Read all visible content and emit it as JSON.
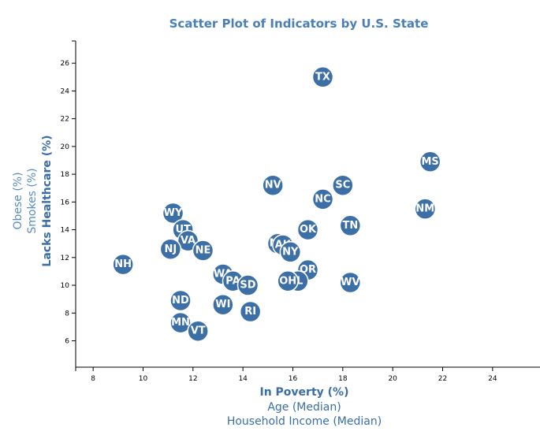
{
  "chart_data": {
    "type": "scatter",
    "title": "Scatter Plot of Indicators by U.S. State",
    "xlabel": "In Poverty (%)",
    "ylabel": "Lacks Healthcare (%)",
    "x_options": [
      "In Poverty (%)",
      "Age (Median)",
      "Household Income (Median)"
    ],
    "y_options": [
      "Lacks Healthcare (%)",
      "Smokes (%)",
      "Obese (%)"
    ],
    "xlim": [
      7.3,
      25.9
    ],
    "ylim": [
      4.1,
      27.6
    ],
    "x_ticks": [
      8,
      10,
      12,
      14,
      16,
      18,
      20,
      22,
      24
    ],
    "y_ticks": [
      6,
      8,
      10,
      12,
      14,
      16,
      18,
      20,
      22,
      24,
      26
    ],
    "grid": false,
    "points": [
      {
        "label": "TX",
        "x": 17.2,
        "y": 25.0
      },
      {
        "label": "MS",
        "x": 21.5,
        "y": 18.9
      },
      {
        "label": "NV",
        "x": 15.2,
        "y": 17.2
      },
      {
        "label": "SC",
        "x": 18.0,
        "y": 17.2
      },
      {
        "label": "NC",
        "x": 17.2,
        "y": 16.2
      },
      {
        "label": "NM",
        "x": 21.3,
        "y": 15.5
      },
      {
        "label": "WY",
        "x": 11.2,
        "y": 15.2
      },
      {
        "label": "UT",
        "x": 11.6,
        "y": 14.0
      },
      {
        "label": "TN",
        "x": 18.3,
        "y": 14.3
      },
      {
        "label": "OK",
        "x": 16.6,
        "y": 14.0
      },
      {
        "label": "VA",
        "x": 11.8,
        "y": 13.2
      },
      {
        "label": "MT",
        "x": 15.4,
        "y": 13.0
      },
      {
        "label": "AK",
        "x": 15.6,
        "y": 12.9
      },
      {
        "label": "NJ",
        "x": 11.1,
        "y": 12.6
      },
      {
        "label": "NE",
        "x": 12.4,
        "y": 12.5
      },
      {
        "label": "NY",
        "x": 15.9,
        "y": 12.4
      },
      {
        "label": "NH",
        "x": 9.2,
        "y": 11.5
      },
      {
        "label": "OR",
        "x": 16.6,
        "y": 11.1
      },
      {
        "label": "WA",
        "x": 13.2,
        "y": 10.8
      },
      {
        "label": "PA",
        "x": 13.6,
        "y": 10.3
      },
      {
        "label": "SD",
        "x": 14.2,
        "y": 10.0
      },
      {
        "label": "IL",
        "x": 16.2,
        "y": 10.3
      },
      {
        "label": "OH",
        "x": 15.8,
        "y": 10.3
      },
      {
        "label": "WV",
        "x": 18.3,
        "y": 10.2
      },
      {
        "label": "ND",
        "x": 11.5,
        "y": 8.9
      },
      {
        "label": "WI",
        "x": 13.2,
        "y": 8.6
      },
      {
        "label": "RI",
        "x": 14.3,
        "y": 8.1
      },
      {
        "label": "MN",
        "x": 11.5,
        "y": 7.3
      },
      {
        "label": "VT",
        "x": 12.2,
        "y": 6.7
      }
    ]
  },
  "colors": {
    "point_fill": "#3d6fa7",
    "point_stroke": "#ffffff",
    "label_color": "#3a6ea5"
  }
}
